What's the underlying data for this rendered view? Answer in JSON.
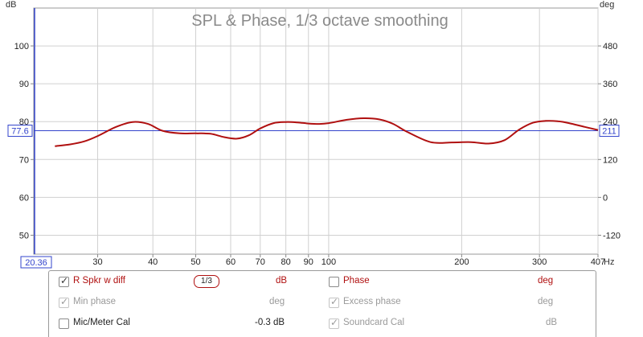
{
  "chart_data": {
    "type": "line",
    "title": "SPL & Phase, 1/3 octave smoothing",
    "y_left_unit": "dB",
    "y_right_unit": "deg",
    "x_unit": "Hz",
    "x_scale": "log",
    "xlim": [
      21.5,
      407
    ],
    "ylim_left": [
      45,
      110
    ],
    "ylim_right": [
      -180,
      600
    ],
    "x_ticks": [
      30,
      40,
      50,
      60,
      70,
      80,
      90,
      100,
      200,
      300,
      407
    ],
    "x_tick_labels": [
      "30",
      "40",
      "50",
      "60",
      "70",
      "80",
      "90",
      "100",
      "200",
      "300",
      "407"
    ],
    "y_left_ticks": [
      50,
      60,
      70,
      80,
      90,
      100
    ],
    "y_right_ticks": [
      -120,
      0,
      120,
      240,
      360,
      480
    ],
    "cursor": {
      "x_label": "20.36",
      "y_left_label": "77.6",
      "y_right_label": "211",
      "y_value": 77.6
    },
    "grid": true,
    "series": [
      {
        "name": "R Spkr w diff",
        "color": "#b01010",
        "x": [
          24,
          26,
          28,
          30,
          33,
          36,
          39,
          42,
          46,
          50,
          54,
          58,
          62,
          66,
          70,
          75,
          80,
          85,
          90,
          95,
          100,
          110,
          120,
          130,
          140,
          150,
          170,
          190,
          210,
          230,
          250,
          270,
          290,
          310,
          330,
          350,
          380,
          407
        ],
        "y": [
          73.5,
          74.0,
          74.8,
          76.2,
          78.6,
          79.9,
          79.4,
          77.6,
          76.9,
          76.9,
          76.8,
          75.9,
          75.5,
          76.4,
          78.2,
          79.6,
          79.9,
          79.8,
          79.5,
          79.4,
          79.6,
          80.5,
          80.9,
          80.6,
          79.4,
          77.4,
          74.6,
          74.5,
          74.6,
          74.2,
          75.1,
          77.9,
          79.7,
          80.2,
          80.1,
          79.6,
          78.6,
          77.8
        ]
      }
    ]
  },
  "legend": {
    "row1": {
      "label": "R Spkr w diff",
      "smoothing": "1/3",
      "unit": "dB",
      "phase_label": "Phase",
      "phase_unit": "deg"
    },
    "row2": {
      "label": "Min phase",
      "unit": "deg",
      "excess_label": "Excess phase",
      "excess_unit": "deg"
    },
    "row3": {
      "label": "Mic/Meter Cal",
      "value": "-0.3 dB",
      "soundcard_label": "Soundcard Cal",
      "soundcard_unit": "dB"
    },
    "colors": {
      "accent": "#b01010",
      "cursor": "#3344cc",
      "disabled": "#9a9a9a"
    }
  }
}
